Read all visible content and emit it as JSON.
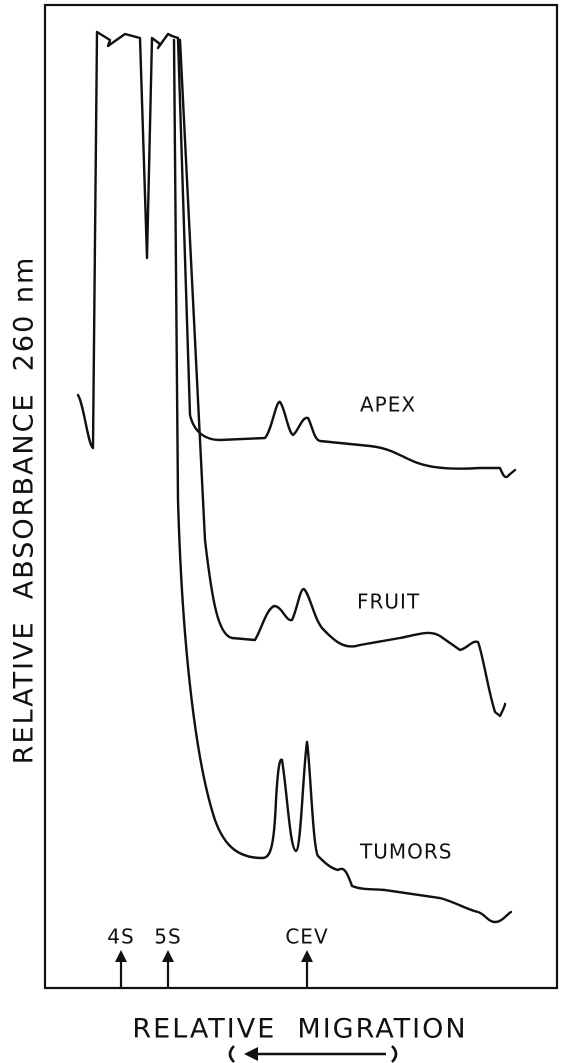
{
  "axes": {
    "y_label": "RELATIVE  ABSORBANCE  260 nm",
    "x_label": "RELATIVE  MIGRATION"
  },
  "traces": [
    {
      "label": "APEX"
    },
    {
      "label": "FRUIT"
    },
    {
      "label": "TUMORS"
    }
  ],
  "markers": [
    {
      "label": "4S"
    },
    {
      "label": "5S"
    },
    {
      "label": "CEV"
    }
  ]
}
